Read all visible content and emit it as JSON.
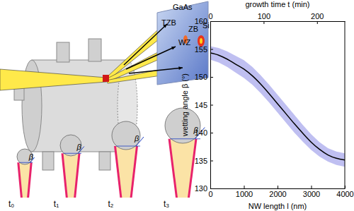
{
  "chart_data": {
    "type": "line",
    "xlabel": "NW length l (nm)",
    "x2label": "growth time t (min)",
    "ylabel": "wetting angle β (°)",
    "x": [
      0,
      250,
      500,
      750,
      1000,
      1250,
      1500,
      1750,
      2000,
      2250,
      2500,
      2750,
      3000,
      3250,
      3500,
      3750,
      4000
    ],
    "values": [
      154.3,
      153.9,
      153.2,
      152.3,
      151.4,
      150.2,
      148.7,
      147.0,
      145.2,
      143.4,
      141.6,
      139.9,
      138.3,
      137.0,
      136.0,
      135.4,
      135.1
    ],
    "lower": [
      153.1,
      152.6,
      151.8,
      150.8,
      149.8,
      148.6,
      147.1,
      145.4,
      143.6,
      141.8,
      140.0,
      138.4,
      136.9,
      135.7,
      134.8,
      134.2,
      133.9
    ],
    "upper": [
      155.5,
      155.2,
      154.6,
      153.8,
      153.0,
      151.8,
      150.3,
      148.6,
      146.8,
      145.0,
      143.2,
      141.4,
      139.7,
      138.3,
      137.2,
      136.6,
      136.3
    ],
    "color": "#000000",
    "xlim": [
      0,
      4000
    ],
    "xticks": [
      0,
      1000,
      2000,
      3000,
      4000
    ],
    "x2lim": [
      0,
      252
    ],
    "x2ticks": [
      0,
      100,
      200
    ],
    "ylim": [
      130,
      160
    ],
    "yticks": [
      130,
      135,
      140,
      145,
      150,
      155,
      160
    ],
    "grid": false
  },
  "diagram": {
    "detector_labels": [
      "TZB",
      "WZ",
      "ZB",
      "GaAs",
      "Si"
    ],
    "stage_labels": [
      "t₀",
      "t₁",
      "t₂",
      "t₃"
    ],
    "angle_label": "β"
  }
}
